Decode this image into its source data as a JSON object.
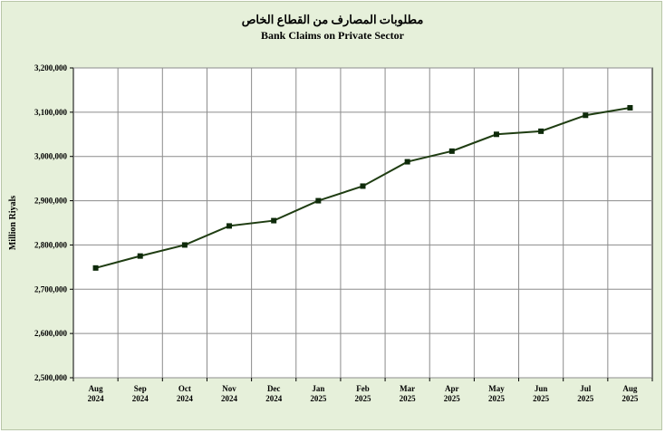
{
  "chart_data": {
    "type": "line",
    "title": "مطلوبات المصارف من القطاع الخاص",
    "subtitle": "Bank Claims on Private Sector",
    "xlabel": "",
    "ylabel": "Million Riyals",
    "categories": [
      [
        "Aug",
        "2024"
      ],
      [
        "Sep",
        "2024"
      ],
      [
        "Oct",
        "2024"
      ],
      [
        "Nov",
        "2024"
      ],
      [
        "Dec",
        "2024"
      ],
      [
        "Jan",
        "2025"
      ],
      [
        "Feb",
        "2025"
      ],
      [
        "Mar",
        "2025"
      ],
      [
        "Apr",
        "2025"
      ],
      [
        "May",
        "2025"
      ],
      [
        "Jun",
        "2025"
      ],
      [
        "Jul",
        "2025"
      ],
      [
        "Aug",
        "2025"
      ]
    ],
    "series": [
      {
        "values": [
          2748000,
          2775000,
          2800000,
          2843000,
          2855000,
          2900000,
          2933000,
          2988000,
          3012000,
          3050000,
          3057000,
          3093000,
          3110000
        ]
      }
    ],
    "ylim": [
      2500000,
      3200000
    ],
    "yticks": [
      "2,500,000",
      "2,600,000",
      "2,700,000",
      "2,800,000",
      "2,900,000",
      "3,000,000",
      "3,100,000",
      "3,200,000"
    ],
    "grid": true,
    "colors": {
      "line": "#1f3d12",
      "marker": "#0e2a0a",
      "plot_bg": "#ffffff",
      "frame_bg": "#e6f0da",
      "grid": "#8c8c8c"
    }
  }
}
